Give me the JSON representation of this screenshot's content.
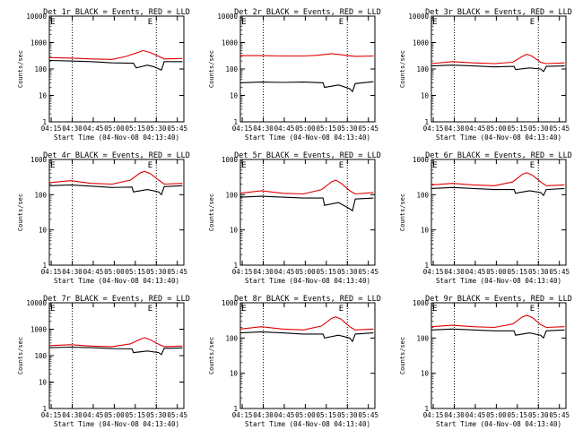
{
  "colors": {
    "events": "#000000",
    "lld": "#e00000",
    "background": "#ffffff"
  },
  "common": {
    "xlabel": "Start Time (04-Nov-08 04:13:40)",
    "ylabel": "Counts/sec",
    "x_ticks": [
      "04:15",
      "04:30",
      "04:45",
      "05:00",
      "05:15",
      "05:30",
      "05:45"
    ],
    "y_ticks": [
      "1",
      "10",
      "100",
      "1000",
      "10000"
    ],
    "y_scale": "log",
    "marker_label": "E"
  },
  "chart_data": [
    {
      "type": "line",
      "title": "Det 1r BLACK = Events, RED = LLD",
      "xlabel": "Start Time (04-Nov-08 04:13:40)",
      "ylabel": "Counts/sec",
      "x_range": [
        "04:15",
        "05:50"
      ],
      "ylim": [
        1,
        10000
      ],
      "ytop": 10000,
      "y_ticks": [
        "1",
        "10",
        "100",
        "1000",
        "10000"
      ],
      "vlines": [
        "04:30",
        "05:30"
      ],
      "series": [
        {
          "name": "Events",
          "color": "#000000",
          "values": [
            [
              0,
              210
            ],
            [
              15,
              200
            ],
            [
              30,
              190
            ],
            [
              45,
              170
            ],
            [
              60,
              165
            ],
            [
              62,
              110
            ],
            [
              70,
              140
            ],
            [
              75,
              120
            ],
            [
              80,
              90
            ],
            [
              82,
              190
            ],
            [
              95,
              190
            ]
          ]
        },
        {
          "name": "LLD",
          "color": "#e00000",
          "values": [
            [
              0,
              270
            ],
            [
              15,
              260
            ],
            [
              30,
              240
            ],
            [
              45,
              230
            ],
            [
              55,
              300
            ],
            [
              62,
              400
            ],
            [
              67,
              500
            ],
            [
              72,
              420
            ],
            [
              78,
              300
            ],
            [
              82,
              240
            ],
            [
              95,
              250
            ]
          ]
        }
      ]
    },
    {
      "type": "line",
      "title": "Det 2r BLACK = Events, RED = LLD",
      "xlabel": "Start Time (04-Nov-08 04:13:40)",
      "ylabel": "Counts/sec",
      "x_range": [
        "04:15",
        "05:50"
      ],
      "ylim": [
        1,
        10000
      ],
      "ytop": 10000,
      "y_ticks": [
        "1",
        "10",
        "100",
        "1000",
        "10000"
      ],
      "vlines": [
        "04:30",
        "05:30"
      ],
      "series": [
        {
          "name": "Events",
          "color": "#000000",
          "values": [
            [
              0,
              30
            ],
            [
              15,
              32
            ],
            [
              30,
              31
            ],
            [
              45,
              32
            ],
            [
              59,
              30
            ],
            [
              60,
              20
            ],
            [
              70,
              25
            ],
            [
              78,
              18
            ],
            [
              80,
              14
            ],
            [
              82,
              28
            ],
            [
              95,
              33
            ]
          ]
        },
        {
          "name": "LLD",
          "color": "#e00000",
          "values": [
            [
              0,
              320
            ],
            [
              15,
              320
            ],
            [
              30,
              310
            ],
            [
              45,
              310
            ],
            [
              55,
              330
            ],
            [
              65,
              380
            ],
            [
              75,
              330
            ],
            [
              82,
              300
            ],
            [
              95,
              310
            ]
          ]
        }
      ]
    },
    {
      "type": "line",
      "title": "Det 3r BLACK = Events, RED = LLD",
      "xlabel": "Start Time (04-Nov-08 04:13:40)",
      "ylabel": "Counts/sec",
      "x_range": [
        "04:15",
        "05:50"
      ],
      "ylim": [
        1,
        10000
      ],
      "ytop": 10000,
      "y_ticks": [
        "1",
        "10",
        "100",
        "1000",
        "10000"
      ],
      "vlines": [
        "04:30",
        "05:30"
      ],
      "series": [
        {
          "name": "Events",
          "color": "#000000",
          "values": [
            [
              0,
              130
            ],
            [
              15,
              140
            ],
            [
              30,
              130
            ],
            [
              45,
              120
            ],
            [
              59,
              125
            ],
            [
              60,
              95
            ],
            [
              70,
              110
            ],
            [
              78,
              100
            ],
            [
              80,
              80
            ],
            [
              82,
              125
            ],
            [
              95,
              130
            ]
          ]
        },
        {
          "name": "LLD",
          "color": "#e00000",
          "values": [
            [
              0,
              160
            ],
            [
              15,
              190
            ],
            [
              30,
              170
            ],
            [
              45,
              160
            ],
            [
              58,
              180
            ],
            [
              65,
              300
            ],
            [
              68,
              360
            ],
            [
              72,
              300
            ],
            [
              78,
              180
            ],
            [
              82,
              160
            ],
            [
              95,
              170
            ]
          ]
        }
      ]
    },
    {
      "type": "line",
      "title": "Det 4r BLACK = Events, RED = LLD",
      "xlabel": "Start Time (04-Nov-08 04:13:40)",
      "ylabel": "Counts/sec",
      "x_range": [
        "04:15",
        "05:50"
      ],
      "ylim": [
        1,
        1000
      ],
      "ytop": 1000,
      "y_ticks": [
        "1",
        "10",
        "100",
        "1000"
      ],
      "vlines": [
        "04:30",
        "05:30"
      ],
      "series": [
        {
          "name": "Events",
          "color": "#000000",
          "values": [
            [
              0,
              180
            ],
            [
              15,
              190
            ],
            [
              30,
              175
            ],
            [
              45,
              160
            ],
            [
              59,
              165
            ],
            [
              60,
              120
            ],
            [
              70,
              140
            ],
            [
              78,
              120
            ],
            [
              80,
              100
            ],
            [
              82,
              170
            ],
            [
              95,
              180
            ]
          ]
        },
        {
          "name": "LLD",
          "color": "#e00000",
          "values": [
            [
              0,
              220
            ],
            [
              15,
              250
            ],
            [
              30,
              210
            ],
            [
              45,
              200
            ],
            [
              58,
              260
            ],
            [
              65,
              420
            ],
            [
              68,
              460
            ],
            [
              72,
              400
            ],
            [
              78,
              260
            ],
            [
              82,
              200
            ],
            [
              95,
              210
            ]
          ]
        }
      ]
    },
    {
      "type": "line",
      "title": "Det 5r BLACK = Events, RED = LLD",
      "xlabel": "Start Time (04-Nov-08 04:13:40)",
      "ylabel": "Counts/sec",
      "x_range": [
        "04:15",
        "05:50"
      ],
      "ylim": [
        1,
        1000
      ],
      "ytop": 1000,
      "y_ticks": [
        "1",
        "10",
        "100",
        "1000"
      ],
      "vlines": [
        "04:30",
        "05:30"
      ],
      "series": [
        {
          "name": "Events",
          "color": "#000000",
          "values": [
            [
              0,
              85
            ],
            [
              15,
              90
            ],
            [
              30,
              85
            ],
            [
              45,
              80
            ],
            [
              59,
              80
            ],
            [
              60,
              50
            ],
            [
              70,
              60
            ],
            [
              78,
              40
            ],
            [
              80,
              35
            ],
            [
              82,
              75
            ],
            [
              95,
              80
            ]
          ]
        },
        {
          "name": "LLD",
          "color": "#e00000",
          "values": [
            [
              0,
              110
            ],
            [
              15,
              130
            ],
            [
              30,
              110
            ],
            [
              45,
              105
            ],
            [
              58,
              140
            ],
            [
              65,
              230
            ],
            [
              68,
              260
            ],
            [
              72,
              210
            ],
            [
              78,
              130
            ],
            [
              82,
              105
            ],
            [
              95,
              115
            ]
          ]
        }
      ]
    },
    {
      "type": "line",
      "title": "Det 6r BLACK = Events, RED = LLD",
      "xlabel": "Start Time (04-Nov-08 04:13:40)",
      "ylabel": "Counts/sec",
      "x_range": [
        "04:15",
        "05:50"
      ],
      "ylim": [
        1,
        1000
      ],
      "ytop": 1000,
      "y_ticks": [
        "1",
        "10",
        "100",
        "1000"
      ],
      "vlines": [
        "04:30",
        "05:30"
      ],
      "series": [
        {
          "name": "Events",
          "color": "#000000",
          "values": [
            [
              0,
              150
            ],
            [
              15,
              160
            ],
            [
              30,
              150
            ],
            [
              45,
              140
            ],
            [
              59,
              140
            ],
            [
              60,
              110
            ],
            [
              70,
              130
            ],
            [
              78,
              115
            ],
            [
              80,
              95
            ],
            [
              82,
              140
            ],
            [
              95,
              150
            ]
          ]
        },
        {
          "name": "LLD",
          "color": "#e00000",
          "values": [
            [
              0,
              190
            ],
            [
              15,
              210
            ],
            [
              30,
              190
            ],
            [
              45,
              180
            ],
            [
              58,
              230
            ],
            [
              65,
              380
            ],
            [
              68,
              420
            ],
            [
              72,
              360
            ],
            [
              78,
              230
            ],
            [
              82,
              180
            ],
            [
              95,
              190
            ]
          ]
        }
      ]
    },
    {
      "type": "line",
      "title": "Det 7r BLACK = Events, RED = LLD",
      "xlabel": "Start Time (04-Nov-08 04:13:40)",
      "ylabel": "Counts/sec",
      "x_range": [
        "04:15",
        "05:50"
      ],
      "ylim": [
        1,
        10000
      ],
      "ytop": 10000,
      "y_ticks": [
        "1",
        "10",
        "100",
        "1000",
        "10000"
      ],
      "vlines": [
        "04:30",
        "05:30"
      ],
      "series": [
        {
          "name": "Events",
          "color": "#000000",
          "values": [
            [
              0,
              200
            ],
            [
              15,
              210
            ],
            [
              30,
              200
            ],
            [
              45,
              185
            ],
            [
              59,
              180
            ],
            [
              60,
              130
            ],
            [
              70,
              150
            ],
            [
              78,
              130
            ],
            [
              80,
              110
            ],
            [
              82,
              190
            ],
            [
              95,
              195
            ]
          ]
        },
        {
          "name": "LLD",
          "color": "#e00000",
          "values": [
            [
              0,
              240
            ],
            [
              15,
              260
            ],
            [
              30,
              230
            ],
            [
              45,
              220
            ],
            [
              58,
              280
            ],
            [
              65,
              420
            ],
            [
              68,
              480
            ],
            [
              72,
              400
            ],
            [
              78,
              270
            ],
            [
              82,
              220
            ],
            [
              95,
              230
            ]
          ]
        }
      ]
    },
    {
      "type": "line",
      "title": "Det 8r BLACK = Events, RED = LLD",
      "xlabel": "Start Time (04-Nov-08 04:13:40)",
      "ylabel": "Counts/sec",
      "x_range": [
        "04:15",
        "05:50"
      ],
      "ylim": [
        1,
        1000
      ],
      "ytop": 1000,
      "y_ticks": [
        "1",
        "10",
        "100",
        "1000"
      ],
      "vlines": [
        "04:30",
        "05:30"
      ],
      "series": [
        {
          "name": "Events",
          "color": "#000000",
          "values": [
            [
              0,
              140
            ],
            [
              15,
              150
            ],
            [
              30,
              140
            ],
            [
              45,
              130
            ],
            [
              59,
              130
            ],
            [
              60,
              100
            ],
            [
              70,
              120
            ],
            [
              78,
              100
            ],
            [
              80,
              80
            ],
            [
              82,
              130
            ],
            [
              95,
              140
            ]
          ]
        },
        {
          "name": "LLD",
          "color": "#e00000",
          "values": [
            [
              0,
              180
            ],
            [
              15,
              210
            ],
            [
              30,
              180
            ],
            [
              45,
              170
            ],
            [
              58,
              220
            ],
            [
              65,
              360
            ],
            [
              68,
              400
            ],
            [
              72,
              340
            ],
            [
              78,
              210
            ],
            [
              82,
              170
            ],
            [
              95,
              180
            ]
          ]
        }
      ]
    },
    {
      "type": "line",
      "title": "Det 9r BLACK = Events, RED = LLD",
      "xlabel": "Start Time (04-Nov-08 04:13:40)",
      "ylabel": "Counts/sec",
      "x_range": [
        "04:15",
        "05:50"
      ],
      "ylim": [
        1,
        1000
      ],
      "ytop": 1000,
      "y_ticks": [
        "1",
        "10",
        "100",
        "1000"
      ],
      "vlines": [
        "04:30",
        "05:30"
      ],
      "series": [
        {
          "name": "Events",
          "color": "#000000",
          "values": [
            [
              0,
              170
            ],
            [
              15,
              180
            ],
            [
              30,
              170
            ],
            [
              45,
              160
            ],
            [
              59,
              160
            ],
            [
              60,
              120
            ],
            [
              70,
              140
            ],
            [
              78,
              120
            ],
            [
              80,
              100
            ],
            [
              82,
              160
            ],
            [
              95,
              170
            ]
          ]
        },
        {
          "name": "LLD",
          "color": "#e00000",
          "values": [
            [
              0,
              210
            ],
            [
              15,
              230
            ],
            [
              30,
              210
            ],
            [
              45,
              200
            ],
            [
              58,
              250
            ],
            [
              65,
              400
            ],
            [
              68,
              440
            ],
            [
              72,
              380
            ],
            [
              78,
              240
            ],
            [
              82,
              200
            ],
            [
              95,
              210
            ]
          ]
        }
      ]
    }
  ]
}
